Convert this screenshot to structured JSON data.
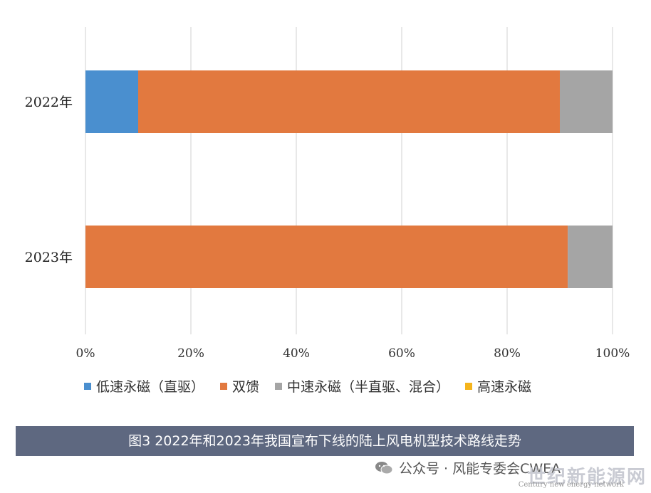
{
  "chart_data": {
    "type": "bar",
    "orientation": "horizontal",
    "stacked": true,
    "categories": [
      "2022年",
      "2023年"
    ],
    "series": [
      {
        "name": "低速永磁（直驱）",
        "color": "#4a8fcf",
        "values": [
          10,
          0
        ]
      },
      {
        "name": "双馈",
        "color": "#e2793f",
        "values": [
          80,
          91.5
        ]
      },
      {
        "name": "中速永磁（半直驱、混合）",
        "color": "#a5a5a5",
        "values": [
          10,
          8.5
        ]
      },
      {
        "name": "高速永磁",
        "color": "#f5b41c",
        "values": [
          0,
          0
        ]
      }
    ],
    "xlim": [
      0,
      100
    ],
    "xticks": [
      "0%",
      "20%",
      "40%",
      "60%",
      "80%",
      "100%"
    ],
    "grid": "vertical",
    "legend_position": "bottom"
  },
  "caption": "图3 2022年和2023年我国宣布下线的陆上风电机型技术路线走势",
  "watermark": {
    "icon": "wechat-icon",
    "text": "公众号 · 风能专委会CWEA",
    "source_logo": "世纪新能源网",
    "source_subtitle": "Century new energy network"
  }
}
